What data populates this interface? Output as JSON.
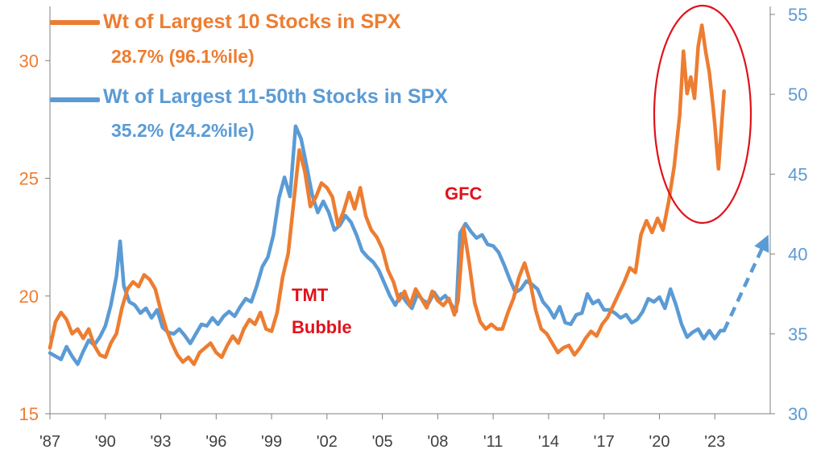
{
  "colors": {
    "orange": "#ED7D31",
    "blue": "#5B9BD5",
    "red": "#E0121B",
    "axis": "#808080"
  },
  "legend": {
    "series1_title": "Wt of Largest 10 Stocks in SPX",
    "series1_sub": "28.7% (96.1%ile)",
    "series2_title": "Wt of Largest 11-50th Stocks in SPX",
    "series2_sub": "35.2% (24.2%ile)"
  },
  "annotations": {
    "gfc": "GFC",
    "tmt_line1": "TMT",
    "tmt_line2": "Bubble"
  },
  "chart_data": {
    "type": "line",
    "title": "",
    "x_ticks": [
      "'87",
      "'90",
      "'93",
      "'96",
      "'99",
      "'02",
      "'05",
      "'08",
      "'11",
      "'14",
      "'17",
      "'20",
      "'23"
    ],
    "x_tick_years": [
      1987,
      1990,
      1993,
      1996,
      1999,
      2002,
      2005,
      2008,
      2011,
      2014,
      2017,
      2020,
      2023
    ],
    "xlim": [
      1987,
      2026
    ],
    "left_axis": {
      "ticks": [
        15,
        20,
        25,
        30
      ],
      "ylim": [
        15,
        32.3
      ],
      "color": "#ED7D31"
    },
    "right_axis": {
      "ticks": [
        30,
        35,
        40,
        45,
        50,
        55
      ],
      "ylim": [
        30,
        55.5
      ],
      "color": "#5B9BD5"
    },
    "series": [
      {
        "name": "Wt of Largest 10 Stocks in SPX",
        "axis": "left",
        "color": "#ED7D31",
        "x": [
          1987.0,
          1987.3,
          1987.6,
          1987.9,
          1988.2,
          1988.5,
          1988.8,
          1989.1,
          1989.4,
          1989.7,
          1990.0,
          1990.3,
          1990.6,
          1990.9,
          1991.2,
          1991.5,
          1991.8,
          1992.1,
          1992.4,
          1992.7,
          1993.0,
          1993.3,
          1993.6,
          1993.9,
          1994.2,
          1994.5,
          1994.8,
          1995.1,
          1995.4,
          1995.7,
          1996.0,
          1996.3,
          1996.6,
          1996.9,
          1997.2,
          1997.5,
          1997.8,
          1998.1,
          1998.4,
          1998.7,
          1999.0,
          1999.3,
          1999.6,
          1999.9,
          2000.2,
          2000.5,
          2000.8,
          2001.1,
          2001.4,
          2001.7,
          2002.0,
          2002.3,
          2002.6,
          2002.9,
          2003.2,
          2003.5,
          2003.8,
          2004.1,
          2004.4,
          2004.7,
          2005.0,
          2005.3,
          2005.6,
          2005.9,
          2006.2,
          2006.5,
          2006.8,
          2007.1,
          2007.4,
          2007.7,
          2008.0,
          2008.3,
          2008.6,
          2008.9,
          2009.1,
          2009.4,
          2009.7,
          2010.0,
          2010.3,
          2010.6,
          2010.9,
          2011.2,
          2011.5,
          2011.8,
          2012.1,
          2012.4,
          2012.7,
          2013.0,
          2013.3,
          2013.6,
          2013.9,
          2014.2,
          2014.5,
          2014.8,
          2015.1,
          2015.4,
          2015.7,
          2016.0,
          2016.3,
          2016.6,
          2016.9,
          2017.2,
          2017.5,
          2017.8,
          2018.1,
          2018.4,
          2018.7,
          2019.0,
          2019.3,
          2019.6,
          2019.9,
          2020.2,
          2020.5,
          2020.8,
          2021.1,
          2021.3,
          2021.5,
          2021.7,
          2021.9,
          2022.1,
          2022.3,
          2022.5,
          2022.7,
          2022.9,
          2023.0,
          2023.2,
          2023.4,
          2023.5
        ],
        "y": [
          17.8,
          18.9,
          19.3,
          19.0,
          18.4,
          18.6,
          18.2,
          18.6,
          17.9,
          17.5,
          17.4,
          18.0,
          18.4,
          19.5,
          20.3,
          20.6,
          20.4,
          20.9,
          20.7,
          20.3,
          19.4,
          18.6,
          18.0,
          17.5,
          17.2,
          17.4,
          17.1,
          17.6,
          17.8,
          18.0,
          17.6,
          17.4,
          17.9,
          18.3,
          18.0,
          18.6,
          19.0,
          18.8,
          19.3,
          18.6,
          18.5,
          19.3,
          20.8,
          21.8,
          24.0,
          26.2,
          25.3,
          23.8,
          24.2,
          24.8,
          24.6,
          24.2,
          23.0,
          23.6,
          24.4,
          23.7,
          24.6,
          23.4,
          22.8,
          22.5,
          22.0,
          21.1,
          20.6,
          19.8,
          20.2,
          19.6,
          20.3,
          19.9,
          19.5,
          20.2,
          19.8,
          19.6,
          19.9,
          19.2,
          19.8,
          22.9,
          21.4,
          19.7,
          18.9,
          18.6,
          18.8,
          18.6,
          18.6,
          19.3,
          19.9,
          20.8,
          21.4,
          20.6,
          19.4,
          18.6,
          18.4,
          18.0,
          17.6,
          17.8,
          17.9,
          17.5,
          17.8,
          18.2,
          18.5,
          18.3,
          18.8,
          19.1,
          19.6,
          20.1,
          20.6,
          21.2,
          21.0,
          22.6,
          23.2,
          22.7,
          23.3,
          22.8,
          24.0,
          25.5,
          27.7,
          30.4,
          28.6,
          29.3,
          28.4,
          30.6,
          31.5,
          30.4,
          29.5,
          28.1,
          27.3,
          25.4,
          27.6,
          28.7
        ]
      },
      {
        "name": "Wt of Largest 11-50th Stocks in SPX",
        "axis": "right",
        "color": "#5B9BD5",
        "x": [
          1987.0,
          1987.3,
          1987.6,
          1987.9,
          1988.2,
          1988.5,
          1988.8,
          1989.1,
          1989.4,
          1989.7,
          1990.0,
          1990.3,
          1990.6,
          1990.8,
          1991.0,
          1991.3,
          1991.6,
          1991.9,
          1992.2,
          1992.5,
          1992.8,
          1993.1,
          1993.4,
          1993.7,
          1994.0,
          1994.3,
          1994.6,
          1994.9,
          1995.2,
          1995.5,
          1995.8,
          1996.1,
          1996.4,
          1996.7,
          1997.0,
          1997.3,
          1997.6,
          1997.9,
          1998.2,
          1998.5,
          1998.8,
          1999.1,
          1999.4,
          1999.7,
          2000.0,
          2000.3,
          2000.6,
          2000.9,
          2001.2,
          2001.5,
          2001.8,
          2002.1,
          2002.4,
          2002.7,
          2003.0,
          2003.3,
          2003.6,
          2003.9,
          2004.2,
          2004.5,
          2004.8,
          2005.1,
          2005.4,
          2005.7,
          2006.0,
          2006.3,
          2006.6,
          2006.9,
          2007.2,
          2007.5,
          2007.8,
          2008.1,
          2008.4,
          2008.7,
          2009.0,
          2009.2,
          2009.5,
          2009.8,
          2010.1,
          2010.4,
          2010.7,
          2011.0,
          2011.3,
          2011.6,
          2011.9,
          2012.2,
          2012.5,
          2012.8,
          2013.1,
          2013.4,
          2013.7,
          2014.0,
          2014.3,
          2014.6,
          2014.9,
          2015.2,
          2015.5,
          2015.8,
          2016.1,
          2016.4,
          2016.7,
          2017.0,
          2017.3,
          2017.6,
          2017.9,
          2018.2,
          2018.5,
          2018.8,
          2019.1,
          2019.4,
          2019.7,
          2020.0,
          2020.3,
          2020.6,
          2020.9,
          2021.2,
          2021.5,
          2021.8,
          2022.1,
          2022.4,
          2022.7,
          2023.0,
          2023.3,
          2023.5
        ],
        "y": [
          33.8,
          33.6,
          33.4,
          34.2,
          33.6,
          33.1,
          33.9,
          34.6,
          34.3,
          34.8,
          35.5,
          36.8,
          38.6,
          40.8,
          38.0,
          37.0,
          36.8,
          36.3,
          36.6,
          36.0,
          36.5,
          35.4,
          35.1,
          35.0,
          35.3,
          34.9,
          34.4,
          35.0,
          35.6,
          35.5,
          36.0,
          35.6,
          36.1,
          36.4,
          36.1,
          36.7,
          37.2,
          37.0,
          38.0,
          39.2,
          39.8,
          41.2,
          43.5,
          44.8,
          43.6,
          48.0,
          47.2,
          45.5,
          43.7,
          42.6,
          43.3,
          42.6,
          41.5,
          41.8,
          42.4,
          42.0,
          41.2,
          40.2,
          39.8,
          39.5,
          39.0,
          38.2,
          37.4,
          36.8,
          37.5,
          37.0,
          36.6,
          37.5,
          37.1,
          36.9,
          37.6,
          37.1,
          37.4,
          36.9,
          36.4,
          41.3,
          41.9,
          41.4,
          41.0,
          41.2,
          40.6,
          40.5,
          40.1,
          39.3,
          38.4,
          37.6,
          37.8,
          38.3,
          38.1,
          37.8,
          37.0,
          36.6,
          36.0,
          36.7,
          35.7,
          35.6,
          36.2,
          36.3,
          37.5,
          36.9,
          37.1,
          36.5,
          36.5,
          36.3,
          36.0,
          36.2,
          35.7,
          35.9,
          36.4,
          37.2,
          37.0,
          37.3,
          36.6,
          37.8,
          36.8,
          35.6,
          34.8,
          35.1,
          35.3,
          34.7,
          35.2,
          34.7,
          35.2,
          35.2
        ]
      }
    ],
    "projection": {
      "x": [
        2023.5,
        2025.9
      ],
      "y_right": [
        35.2,
        41.2
      ],
      "style": "dashed-arrow",
      "color": "#5B9BD5"
    }
  }
}
